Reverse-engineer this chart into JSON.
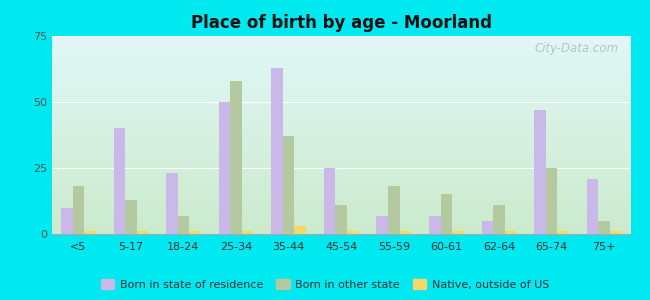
{
  "title": "Place of birth by age - Moorland",
  "categories": [
    "<5",
    "5-17",
    "18-24",
    "25-34",
    "35-44",
    "45-54",
    "55-59",
    "60-61",
    "62-64",
    "65-74",
    "75+"
  ],
  "born_in_state": [
    10,
    40,
    23,
    50,
    63,
    25,
    7,
    7,
    5,
    47,
    21
  ],
  "born_other_state": [
    18,
    13,
    7,
    58,
    37,
    11,
    18,
    15,
    11,
    25,
    5
  ],
  "native_outside_us": [
    1,
    1,
    1,
    1,
    3,
    1,
    1,
    1,
    1,
    1,
    1
  ],
  "bar_color_state": "#c9b8e8",
  "bar_color_other": "#b5c9a0",
  "bar_color_native": "#f5d86a",
  "ylim": [
    0,
    75
  ],
  "yticks": [
    0,
    25,
    50,
    75
  ],
  "legend_labels": [
    "Born in state of residence",
    "Born in other state",
    "Native, outside of US"
  ],
  "watermark": "City-Data.com",
  "outer_bg": "#00e8f0"
}
